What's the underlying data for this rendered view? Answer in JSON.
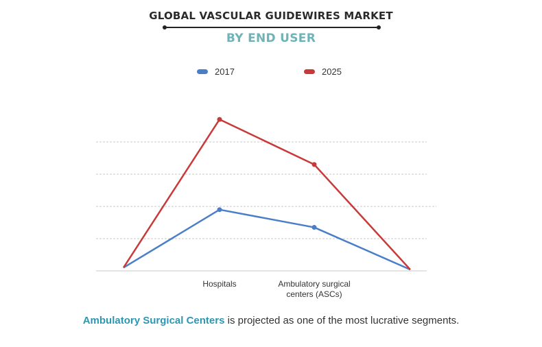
{
  "header": {
    "title": "GLOBAL VASCULAR GUIDEWIRES MARKET",
    "subtitle": "BY END USER"
  },
  "footer": {
    "highlight": "Ambulatory Surgical Centers",
    "rest": " is projected as one of the most lucrative segments."
  },
  "chart_data": {
    "type": "line",
    "categories": [
      "",
      "Hospitals",
      "Ambulatory surgical centers (ASCs)",
      ""
    ],
    "category_lines": [
      [
        ""
      ],
      [
        "Hospitals"
      ],
      [
        "Ambulatory surgical",
        "centers (ASCs)"
      ],
      [
        ""
      ]
    ],
    "series": [
      {
        "name": "2017",
        "color": "#4a7ec9",
        "values": [
          1,
          19,
          null,
          0.4
        ]
      },
      {
        "name": "2025",
        "color": "#c83a3a",
        "values": [
          1,
          47,
          33,
          0.4
        ]
      }
    ],
    "series_ascs_2017": 13.5,
    "ylim": [
      0,
      50
    ],
    "grid": true,
    "legend_position": "top-center",
    "xlabel": "",
    "ylabel": ""
  }
}
